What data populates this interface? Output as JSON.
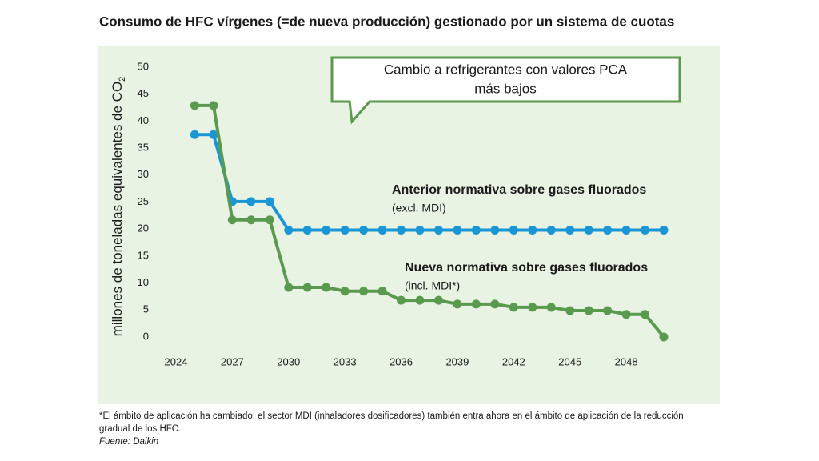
{
  "chart_data": {
    "type": "line",
    "title": "Consumo de HFC vírgenes (=de nueva producción) gestionado por un sistema de cuotas",
    "y_label": "millones de toneladas equivalentes de CO",
    "y_label_subscript": "2",
    "x": [
      2025,
      2026,
      2027,
      2028,
      2029,
      2030,
      2031,
      2032,
      2033,
      2034,
      2035,
      2036,
      2037,
      2038,
      2039,
      2040,
      2041,
      2042,
      2043,
      2044,
      2045,
      2046,
      2047,
      2048,
      2049,
      2050
    ],
    "series": [
      {
        "name": "Anterior normativa sobre gases fluorados",
        "note": "(excl. MDI)",
        "color": "#1a96d4",
        "values": [
          37.5,
          37.5,
          25.1,
          25.1,
          25.1,
          19.8,
          19.8,
          19.8,
          19.8,
          19.8,
          19.8,
          19.8,
          19.8,
          19.8,
          19.8,
          19.8,
          19.8,
          19.8,
          19.8,
          19.8,
          19.8,
          19.8,
          19.8,
          19.8,
          19.8,
          19.8
        ]
      },
      {
        "name": "Nueva normativa sobre gases fluorados",
        "note": "(incl. MDI*)",
        "color": "#5a9a4e",
        "values": [
          42.9,
          42.9,
          21.7,
          21.7,
          21.7,
          9.2,
          9.2,
          9.2,
          8.5,
          8.5,
          8.5,
          6.8,
          6.8,
          6.8,
          6.1,
          6.1,
          6.1,
          5.5,
          5.5,
          5.5,
          4.9,
          4.9,
          4.9,
          4.2,
          4.2,
          0
        ]
      }
    ],
    "xlim": [
      2023,
      2051
    ],
    "ylim": [
      0,
      50
    ],
    "xticks": [
      2024,
      2027,
      2030,
      2033,
      2036,
      2039,
      2042,
      2045,
      2048
    ],
    "yticks": [
      0,
      5,
      10,
      15,
      20,
      25,
      30,
      35,
      40,
      45,
      50
    ],
    "grid": false,
    "background": "#e9f3e4",
    "annotation": [
      "Cambio a refrigerantes con valores PCA",
      "más bajos"
    ],
    "footnote": "*El ámbito de aplicación ha cambiado: el sector MDI (inhaladores dosificadores) también entra ahora en el ámbito de aplicación de la reducción gradual de los HFC.",
    "source": "Fuente: Daikin"
  }
}
